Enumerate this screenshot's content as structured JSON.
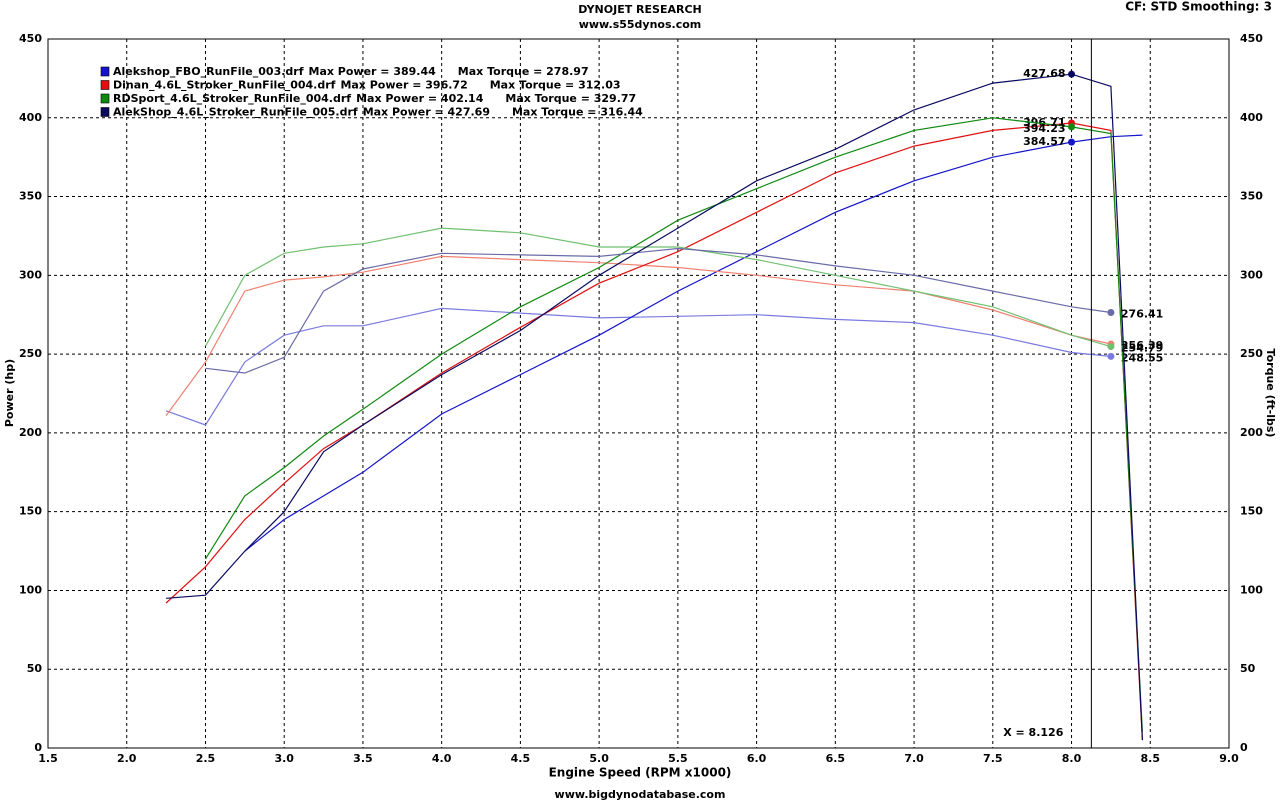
{
  "chart_data": {
    "type": "line",
    "title": "DYNOJET RESEARCH",
    "subtitle": "www.s55dynos.com",
    "settings_label": "CF: STD  Smoothing: 3",
    "footer": "www.bigdynodatabase.com",
    "x_label": "Engine Speed (RPM x1000)",
    "y_label": "Power (hp)",
    "y2_label": "Torque (ft-lbs)",
    "cursor": {
      "x": 8.126,
      "label": "X = 8.126"
    },
    "grid": true,
    "xlim": [
      1.5,
      9.0
    ],
    "xticks": [
      1.5,
      {
        "value": 2,
        "label": "2.0"
      },
      2.5,
      {
        "value": 3,
        "label": "3.0"
      },
      3.5,
      {
        "value": 4,
        "label": "4.0"
      },
      4.5,
      {
        "value": 5,
        "label": "5.0"
      },
      5.5,
      {
        "value": 6,
        "label": "6.0"
      },
      6.5,
      {
        "value": 7,
        "label": "7.0"
      },
      7.5,
      {
        "value": 8,
        "label": "8.0"
      },
      8.5,
      {
        "value": 9,
        "label": "9.0"
      }
    ],
    "ylim": [
      0,
      450
    ],
    "yticks": [
      0,
      50,
      100,
      150,
      200,
      250,
      300,
      350,
      400,
      450
    ],
    "y2lim": [
      0,
      450
    ],
    "y2ticks": [
      0,
      50,
      100,
      150,
      200,
      250,
      300,
      350,
      400,
      450
    ],
    "x": [
      2.25,
      2.5,
      2.75,
      3.0,
      3.25,
      3.5,
      4.0,
      4.5,
      5.0,
      5.5,
      6.0,
      6.5,
      7.0,
      7.5,
      8.0,
      8.25,
      8.45
    ],
    "series": [
      {
        "name": "Alekshop_FBO_RunFile_003.drf",
        "max_power": "Max Power = 389.44",
        "max_torque": "Max Torque = 278.97",
        "color": "#1414c8",
        "y2_color": "#7a7ae0",
        "values": [
          null,
          null,
          125,
          145,
          160,
          175,
          212,
          237,
          262,
          290,
          315,
          340,
          360,
          375,
          384.57,
          388,
          389
        ],
        "y2_values": [
          214,
          205,
          245,
          262,
          268,
          268,
          279,
          276,
          273,
          274,
          275,
          272,
          270,
          262,
          251,
          248.55,
          null
        ]
      },
      {
        "name": "Dinan_4.6L_Stroker_RunFile_004.drf",
        "max_power": "Max Power = 396.72",
        "max_torque": "Max Torque = 312.03",
        "color": "#e01010",
        "y2_color": "#f08070",
        "values": [
          92,
          115,
          145,
          168,
          190,
          205,
          238,
          267,
          295,
          315,
          340,
          365,
          382,
          392,
          396.71,
          392,
          5
        ],
        "y2_values": [
          211,
          245,
          290,
          297,
          299,
          302,
          312,
          310,
          308,
          305,
          300,
          294,
          290,
          278,
          262,
          256.39,
          null
        ]
      },
      {
        "name": "RDSport_4.6L_Stroker_RunFile_004.drf",
        "max_power": "Max Power = 402.14",
        "max_torque": "Max Torque = 329.77",
        "color": "#108a10",
        "y2_color": "#70c070",
        "values": [
          null,
          120,
          160,
          178,
          198,
          215,
          250,
          280,
          305,
          335,
          355,
          375,
          392,
          400,
          394.23,
          390,
          10
        ],
        "y2_values": [
          null,
          255,
          300,
          314,
          318,
          320,
          330,
          327,
          318,
          318,
          310,
          300,
          290,
          280,
          262,
          254.79,
          null
        ]
      },
      {
        "name": "AlekShop_4.6L_Stroker_RunFile_005.drf",
        "max_power": "Max Power = 427.69",
        "max_torque": "Max Torque = 316.44",
        "color": "#0a0a60",
        "y2_color": "#6a6aa8",
        "values": [
          95,
          97,
          125,
          150,
          188,
          205,
          237,
          265,
          300,
          330,
          360,
          380,
          405,
          422,
          427.68,
          420,
          5
        ],
        "y2_values": [
          null,
          241,
          238,
          248,
          290,
          304,
          314,
          313,
          312,
          317,
          313,
          306,
          300,
          290,
          280,
          276.41,
          null
        ]
      }
    ],
    "power_label_index": 14,
    "torque_label_index": 15
  }
}
